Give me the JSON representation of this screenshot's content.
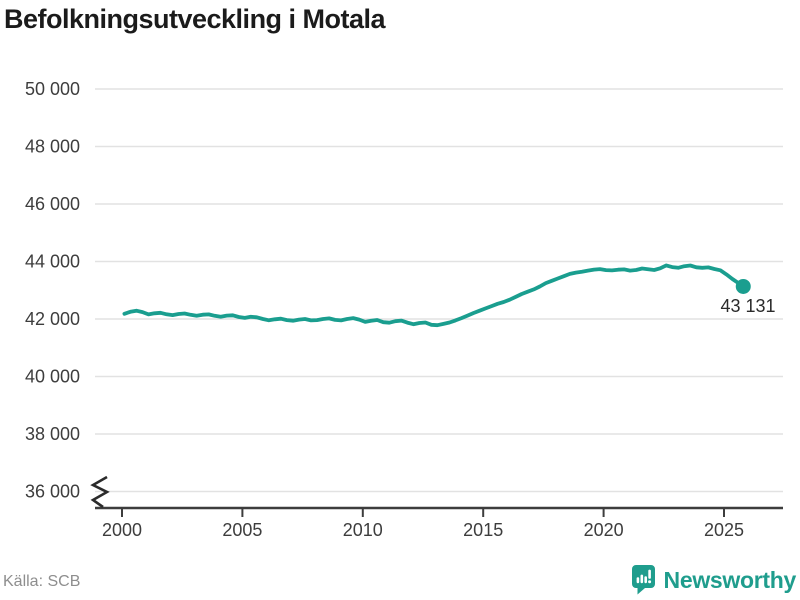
{
  "footer": {
    "source": "Källa: SCB",
    "logo_text": "Newsworthy"
  },
  "colors": {
    "line": "#1A9E8F",
    "grid": "#e2e2e2",
    "axis": "#3d3d3d",
    "axis_break": "#2b2b2b",
    "logo": "#1f9d8d"
  },
  "icons": {
    "logo_icon": "newsworthy-barchart-bubble-icon"
  },
  "chart_data": {
    "type": "line",
    "title": "Befolkningsutveckling i Motala",
    "series_name": "Befolkning i Motala",
    "ylabel": "",
    "xlabel": "",
    "ylim": [
      36000,
      50000
    ],
    "xlim": [
      1998.9,
      2027.5
    ],
    "grid": "horizontal",
    "axis_break": true,
    "legend": "none",
    "end_label": "43 131",
    "end_value": 43131,
    "ytick_values": [
      50000,
      48000,
      46000,
      44000,
      42000,
      40000,
      38000,
      36000
    ],
    "ytick_labels": [
      "50 000",
      "48 000",
      "46 000",
      "44 000",
      "42 000",
      "40 000",
      "38 000",
      "36 000"
    ],
    "xtick_values": [
      2000,
      2005,
      2010,
      2015,
      2020,
      2025
    ],
    "xtick_labels": [
      "2000",
      "2005",
      "2010",
      "2015",
      "2020",
      "2025"
    ],
    "points": [
      [
        2000.1,
        42180
      ],
      [
        2000.35,
        42250
      ],
      [
        2000.6,
        42290
      ],
      [
        2000.85,
        42240
      ],
      [
        2001.1,
        42160
      ],
      [
        2001.35,
        42200
      ],
      [
        2001.6,
        42215
      ],
      [
        2001.85,
        42165
      ],
      [
        2002.1,
        42135
      ],
      [
        2002.35,
        42175
      ],
      [
        2002.6,
        42190
      ],
      [
        2002.85,
        42145
      ],
      [
        2003.1,
        42115
      ],
      [
        2003.35,
        42150
      ],
      [
        2003.6,
        42160
      ],
      [
        2003.85,
        42110
      ],
      [
        2004.1,
        42080
      ],
      [
        2004.35,
        42120
      ],
      [
        2004.6,
        42130
      ],
      [
        2004.85,
        42070
      ],
      [
        2005.1,
        42040
      ],
      [
        2005.35,
        42075
      ],
      [
        2005.6,
        42060
      ],
      [
        2005.85,
        42000
      ],
      [
        2006.1,
        41955
      ],
      [
        2006.35,
        41990
      ],
      [
        2006.6,
        42010
      ],
      [
        2006.85,
        41960
      ],
      [
        2007.1,
        41940
      ],
      [
        2007.35,
        41980
      ],
      [
        2007.6,
        42000
      ],
      [
        2007.85,
        41950
      ],
      [
        2008.1,
        41960
      ],
      [
        2008.35,
        42000
      ],
      [
        2008.6,
        42020
      ],
      [
        2008.85,
        41970
      ],
      [
        2009.1,
        41950
      ],
      [
        2009.35,
        42000
      ],
      [
        2009.6,
        42030
      ],
      [
        2009.85,
        41980
      ],
      [
        2010.1,
        41900
      ],
      [
        2010.35,
        41940
      ],
      [
        2010.6,
        41965
      ],
      [
        2010.85,
        41890
      ],
      [
        2011.1,
        41870
      ],
      [
        2011.35,
        41925
      ],
      [
        2011.6,
        41945
      ],
      [
        2011.85,
        41875
      ],
      [
        2012.1,
        41820
      ],
      [
        2012.35,
        41860
      ],
      [
        2012.6,
        41880
      ],
      [
        2012.85,
        41800
      ],
      [
        2013.1,
        41785
      ],
      [
        2013.35,
        41830
      ],
      [
        2013.6,
        41880
      ],
      [
        2013.85,
        41950
      ],
      [
        2014.1,
        42030
      ],
      [
        2014.35,
        42120
      ],
      [
        2014.6,
        42210
      ],
      [
        2014.85,
        42290
      ],
      [
        2015.1,
        42370
      ],
      [
        2015.35,
        42450
      ],
      [
        2015.6,
        42530
      ],
      [
        2015.85,
        42590
      ],
      [
        2016.1,
        42670
      ],
      [
        2016.35,
        42770
      ],
      [
        2016.6,
        42870
      ],
      [
        2016.85,
        42950
      ],
      [
        2017.1,
        43030
      ],
      [
        2017.35,
        43130
      ],
      [
        2017.6,
        43250
      ],
      [
        2017.85,
        43330
      ],
      [
        2018.1,
        43410
      ],
      [
        2018.35,
        43490
      ],
      [
        2018.6,
        43570
      ],
      [
        2018.85,
        43615
      ],
      [
        2019.1,
        43645
      ],
      [
        2019.35,
        43685
      ],
      [
        2019.6,
        43720
      ],
      [
        2019.85,
        43735
      ],
      [
        2020.1,
        43700
      ],
      [
        2020.35,
        43690
      ],
      [
        2020.6,
        43715
      ],
      [
        2020.85,
        43725
      ],
      [
        2021.1,
        43685
      ],
      [
        2021.35,
        43705
      ],
      [
        2021.6,
        43755
      ],
      [
        2021.85,
        43730
      ],
      [
        2022.1,
        43705
      ],
      [
        2022.35,
        43765
      ],
      [
        2022.6,
        43865
      ],
      [
        2022.85,
        43805
      ],
      [
        2023.1,
        43780
      ],
      [
        2023.35,
        43835
      ],
      [
        2023.6,
        43860
      ],
      [
        2023.85,
        43800
      ],
      [
        2024.1,
        43780
      ],
      [
        2024.35,
        43795
      ],
      [
        2024.6,
        43740
      ],
      [
        2024.85,
        43695
      ],
      [
        2025.1,
        43550
      ],
      [
        2025.35,
        43390
      ],
      [
        2025.6,
        43250
      ],
      [
        2025.8,
        43131
      ]
    ]
  }
}
